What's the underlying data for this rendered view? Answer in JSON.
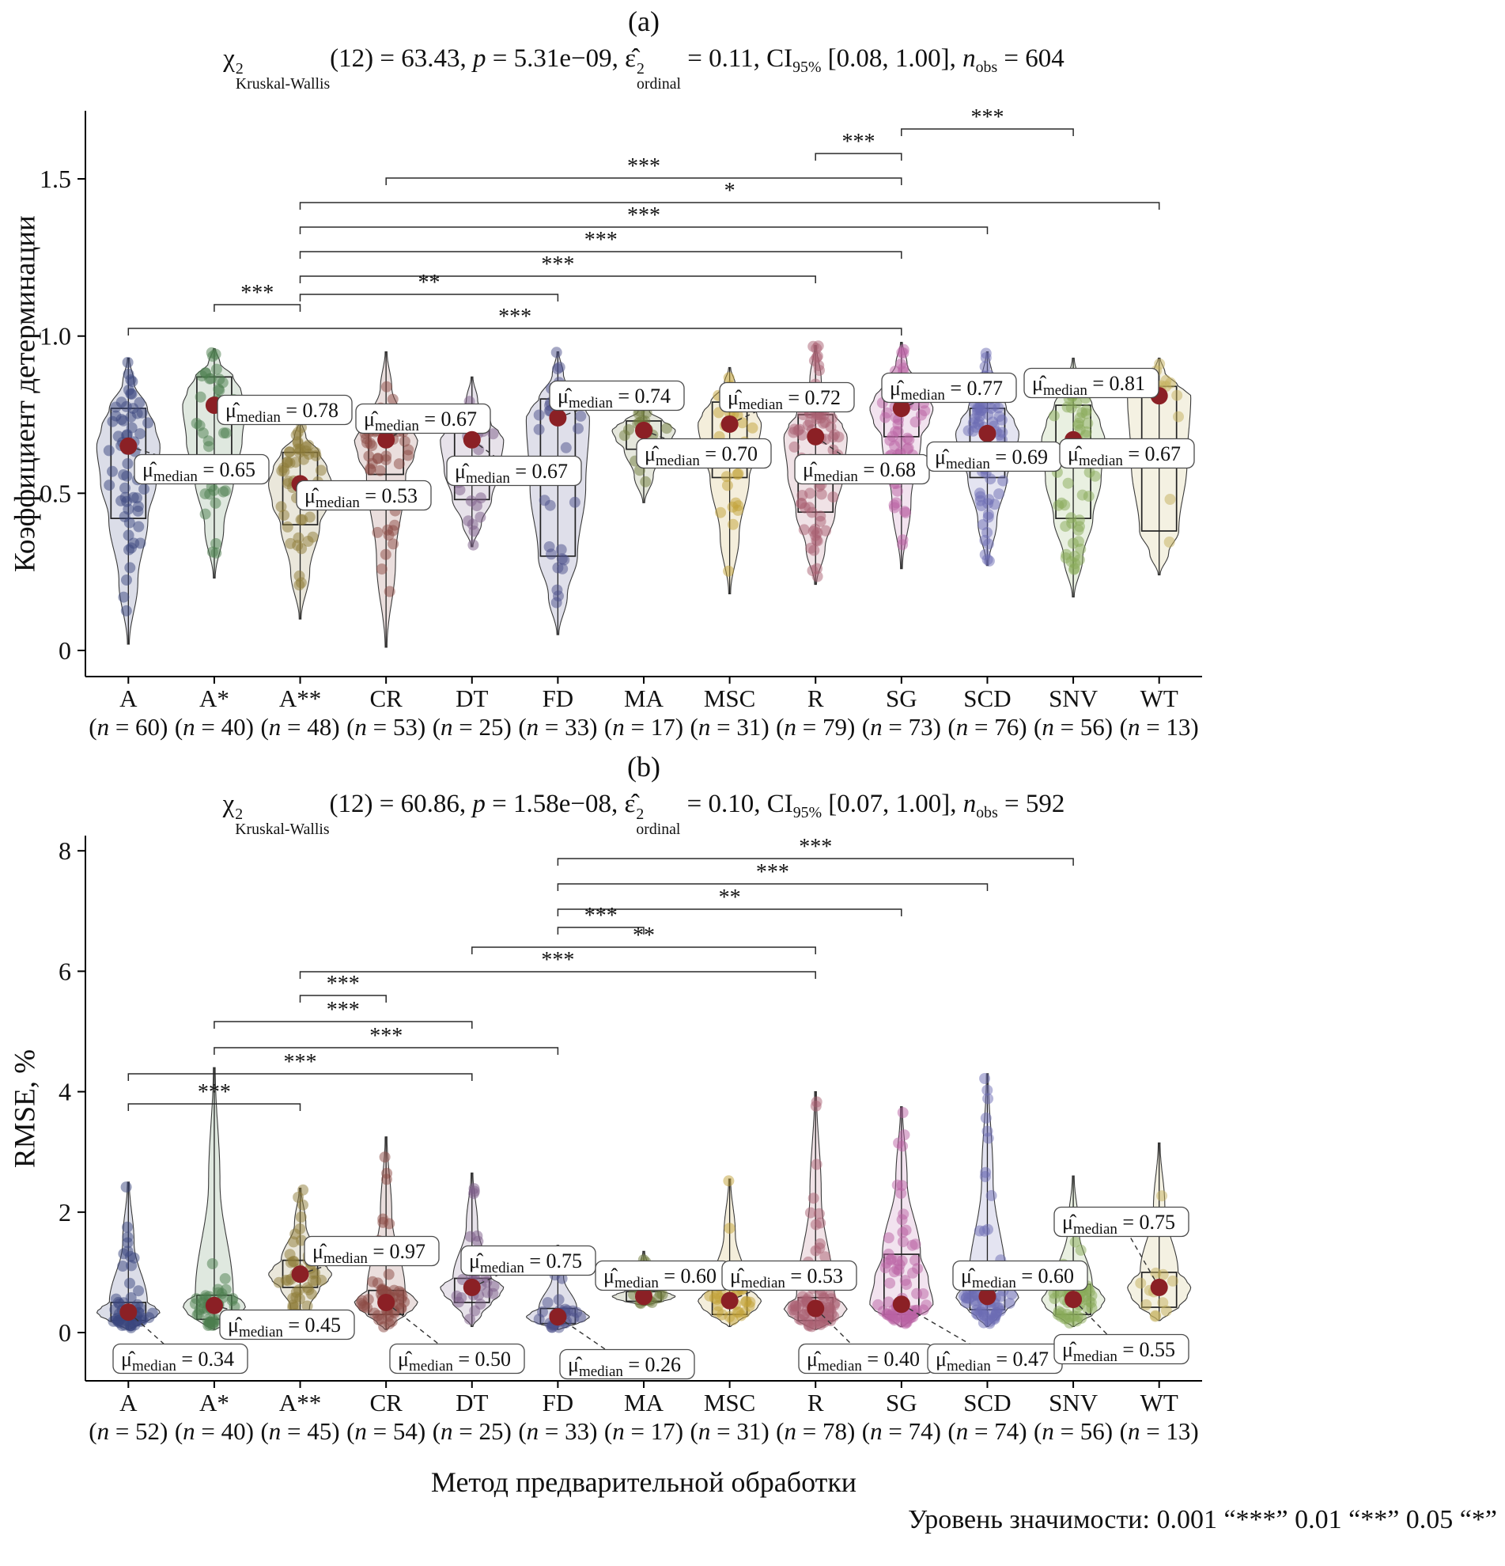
{
  "caption": "Уровень значимости: 0.001 “***” 0.01 “**” 0.05 “*”",
  "n_symbol": "n",
  "median_dot_color": "#8b2025",
  "median_label": {
    "symbol": "μ̂",
    "subscript": "median",
    "equals": " = "
  },
  "panel_a": {
    "label": "(a)",
    "title": {
      "chi": "χ",
      "chi_sup": "2",
      "chi_sub": "Kruskal-Wallis",
      "seg_df": "(12) = 63.43, ",
      "p": "p",
      "seg_p": " = 5.31e−09, ",
      "eps": "ε̂",
      "eps_sup": "2",
      "eps_sub": "ordinal",
      "seg_eps": " = 0.11, ",
      "ci": "CI",
      "ci_sub": "95%",
      "seg_ci": " [0.08, 1.00], ",
      "n": "n",
      "n_sub": "obs",
      "seg_n": " = 604"
    }
  },
  "panel_b": {
    "label": "(b)",
    "title": {
      "chi": "χ",
      "chi_sup": "2",
      "chi_sub": "Kruskal-Wallis",
      "seg_df": "(12) = 60.86, ",
      "p": "p",
      "seg_p": " = 1.58e−08, ",
      "eps": "ε̂",
      "eps_sup": "2",
      "eps_sub": "ordinal",
      "seg_eps": " = 0.10, ",
      "ci": "CI",
      "ci_sub": "95%",
      "seg_ci": " [0.07, 1.00], ",
      "n": "n",
      "n_sub": "obs",
      "seg_n": " = 592"
    },
    "x_axis_title": "Метод предварительной обработки"
  },
  "chart_data": [
    {
      "type": "violin-box-scatter",
      "panel": "a",
      "ylabel": "Коэффициент детерминации",
      "yticks": [
        0,
        0.5,
        1.0,
        1.5
      ],
      "ytick_labels": [
        "0",
        "0.5",
        "1.0",
        "1.5"
      ],
      "ylim": [
        -0.08,
        1.72
      ],
      "grid": false,
      "legend": false,
      "groups": [
        {
          "name": "A",
          "n": 60,
          "median": 0.65,
          "q1": 0.42,
          "q3": 0.77,
          "low": 0.02,
          "high": 0.93,
          "color": "#39457e"
        },
        {
          "name": "A*",
          "n": 40,
          "median": 0.78,
          "q1": 0.55,
          "q3": 0.87,
          "low": 0.23,
          "high": 0.96,
          "color": "#4c7d4e"
        },
        {
          "name": "A**",
          "n": 48,
          "median": 0.53,
          "q1": 0.4,
          "q3": 0.63,
          "low": 0.1,
          "high": 0.73,
          "color": "#8d7c38"
        },
        {
          "name": "CR",
          "n": 53,
          "median": 0.67,
          "q1": 0.56,
          "q3": 0.72,
          "low": 0.01,
          "high": 0.95,
          "color": "#8c4a44"
        },
        {
          "name": "DT",
          "n": 25,
          "median": 0.67,
          "q1": 0.48,
          "q3": 0.72,
          "low": 0.33,
          "high": 0.87,
          "color": "#7c5c88"
        },
        {
          "name": "FD",
          "n": 33,
          "median": 0.74,
          "q1": 0.3,
          "q3": 0.8,
          "low": 0.05,
          "high": 0.95,
          "color": "#4c5089"
        },
        {
          "name": "MA",
          "n": 17,
          "median": 0.7,
          "q1": 0.64,
          "q3": 0.73,
          "low": 0.47,
          "high": 0.79,
          "color": "#6f7c3c"
        },
        {
          "name": "MSC",
          "n": 31,
          "median": 0.72,
          "q1": 0.55,
          "q3": 0.79,
          "low": 0.18,
          "high": 0.9,
          "color": "#c2a238"
        },
        {
          "name": "R",
          "n": 79,
          "median": 0.68,
          "q1": 0.44,
          "q3": 0.75,
          "low": 0.21,
          "high": 0.97,
          "color": "#aa5f72"
        },
        {
          "name": "SG",
          "n": 73,
          "median": 0.77,
          "q1": 0.68,
          "q3": 0.84,
          "low": 0.26,
          "high": 0.98,
          "color": "#b962a4"
        },
        {
          "name": "SCD",
          "n": 76,
          "median": 0.69,
          "q1": 0.55,
          "q3": 0.77,
          "low": 0.27,
          "high": 0.95,
          "color": "#6b6cb4"
        },
        {
          "name": "SNV",
          "n": 56,
          "median": 0.67,
          "q1": 0.42,
          "q3": 0.78,
          "low": 0.17,
          "high": 0.93,
          "color": "#87aa58"
        },
        {
          "name": "WT",
          "n": 13,
          "median": 0.81,
          "q1": 0.38,
          "q3": 0.84,
          "low": 0.24,
          "high": 0.93,
          "color": "#c4b05c"
        }
      ],
      "comparisons": [
        {
          "g1": "SG",
          "g2": "SNV",
          "label": "***"
        },
        {
          "g1": "R",
          "g2": "SG",
          "label": "***"
        },
        {
          "g1": "CR",
          "g2": "SG",
          "label": "***"
        },
        {
          "g1": "A**",
          "g2": "WT",
          "label": "*"
        },
        {
          "g1": "A**",
          "g2": "SCD",
          "label": "***"
        },
        {
          "g1": "A**",
          "g2": "SG",
          "label": "***"
        },
        {
          "g1": "A**",
          "g2": "R",
          "label": "***"
        },
        {
          "g1": "A**",
          "g2": "FD",
          "label": "**"
        },
        {
          "g1": "A*",
          "g2": "A**",
          "label": "***"
        },
        {
          "g1": "A",
          "g2": "SG",
          "label": "***"
        }
      ]
    },
    {
      "type": "violin-box-scatter",
      "panel": "b",
      "ylabel": "RMSE, %",
      "yticks": [
        0,
        2,
        4,
        6,
        8
      ],
      "ytick_labels": [
        "0",
        "2",
        "4",
        "6",
        "8"
      ],
      "ylim": [
        -0.8,
        8.26
      ],
      "grid": false,
      "legend": false,
      "groups": [
        {
          "name": "A",
          "n": 52,
          "median": 0.34,
          "q1": 0.2,
          "q3": 0.5,
          "low": 0.05,
          "high": 2.5,
          "color": "#39457e"
        },
        {
          "name": "A*",
          "n": 40,
          "median": 0.45,
          "q1": 0.22,
          "q3": 0.62,
          "low": 0.05,
          "high": 4.4,
          "color": "#4c7d4e"
        },
        {
          "name": "A**",
          "n": 45,
          "median": 0.97,
          "q1": 0.75,
          "q3": 1.2,
          "low": 0.1,
          "high": 2.4,
          "color": "#8d7c38"
        },
        {
          "name": "CR",
          "n": 54,
          "median": 0.5,
          "q1": 0.3,
          "q3": 0.7,
          "low": 0.05,
          "high": 3.25,
          "color": "#8c4a44"
        },
        {
          "name": "DT",
          "n": 25,
          "median": 0.75,
          "q1": 0.5,
          "q3": 0.9,
          "low": 0.1,
          "high": 2.65,
          "color": "#7c5c88"
        },
        {
          "name": "FD",
          "n": 33,
          "median": 0.26,
          "q1": 0.15,
          "q3": 0.4,
          "low": 0.05,
          "high": 1.45,
          "color": "#4c5089"
        },
        {
          "name": "MA",
          "n": 17,
          "median": 0.6,
          "q1": 0.52,
          "q3": 0.68,
          "low": 0.45,
          "high": 1.35,
          "color": "#6f7c3c"
        },
        {
          "name": "MSC",
          "n": 31,
          "median": 0.53,
          "q1": 0.3,
          "q3": 0.72,
          "low": 0.1,
          "high": 2.55,
          "color": "#c2a238"
        },
        {
          "name": "R",
          "n": 78,
          "median": 0.4,
          "q1": 0.2,
          "q3": 0.58,
          "low": 0.05,
          "high": 4.0,
          "color": "#aa5f72"
        },
        {
          "name": "SG",
          "n": 74,
          "median": 0.47,
          "q1": 0.3,
          "q3": 1.3,
          "low": 0.1,
          "high": 3.75,
          "color": "#b962a4"
        },
        {
          "name": "SCD",
          "n": 74,
          "median": 0.6,
          "q1": 0.38,
          "q3": 0.8,
          "low": 0.1,
          "high": 4.3,
          "color": "#6b6cb4"
        },
        {
          "name": "SNV",
          "n": 56,
          "median": 0.55,
          "q1": 0.3,
          "q3": 0.8,
          "low": 0.1,
          "high": 2.6,
          "color": "#87aa58"
        },
        {
          "name": "WT",
          "n": 13,
          "median": 0.75,
          "q1": 0.42,
          "q3": 1.0,
          "low": 0.2,
          "high": 3.15,
          "color": "#c4b05c"
        }
      ],
      "comparisons": [
        {
          "g1": "FD",
          "g2": "SNV",
          "label": "***"
        },
        {
          "g1": "FD",
          "g2": "SCD",
          "label": "***"
        },
        {
          "g1": "FD",
          "g2": "SG",
          "label": "**"
        },
        {
          "g1": "FD",
          "g2": "MA",
          "label": "***"
        },
        {
          "g1": "DT",
          "g2": "R",
          "label": "**"
        },
        {
          "g1": "A**",
          "g2": "R",
          "label": "***"
        },
        {
          "g1": "A**",
          "g2": "CR",
          "label": "***"
        },
        {
          "g1": "A*",
          "g2": "DT",
          "label": "***"
        },
        {
          "g1": "A*",
          "g2": "FD",
          "label": "***"
        },
        {
          "g1": "A",
          "g2": "DT",
          "label": "***"
        },
        {
          "g1": "A",
          "g2": "A**",
          "label": "***"
        }
      ]
    }
  ]
}
